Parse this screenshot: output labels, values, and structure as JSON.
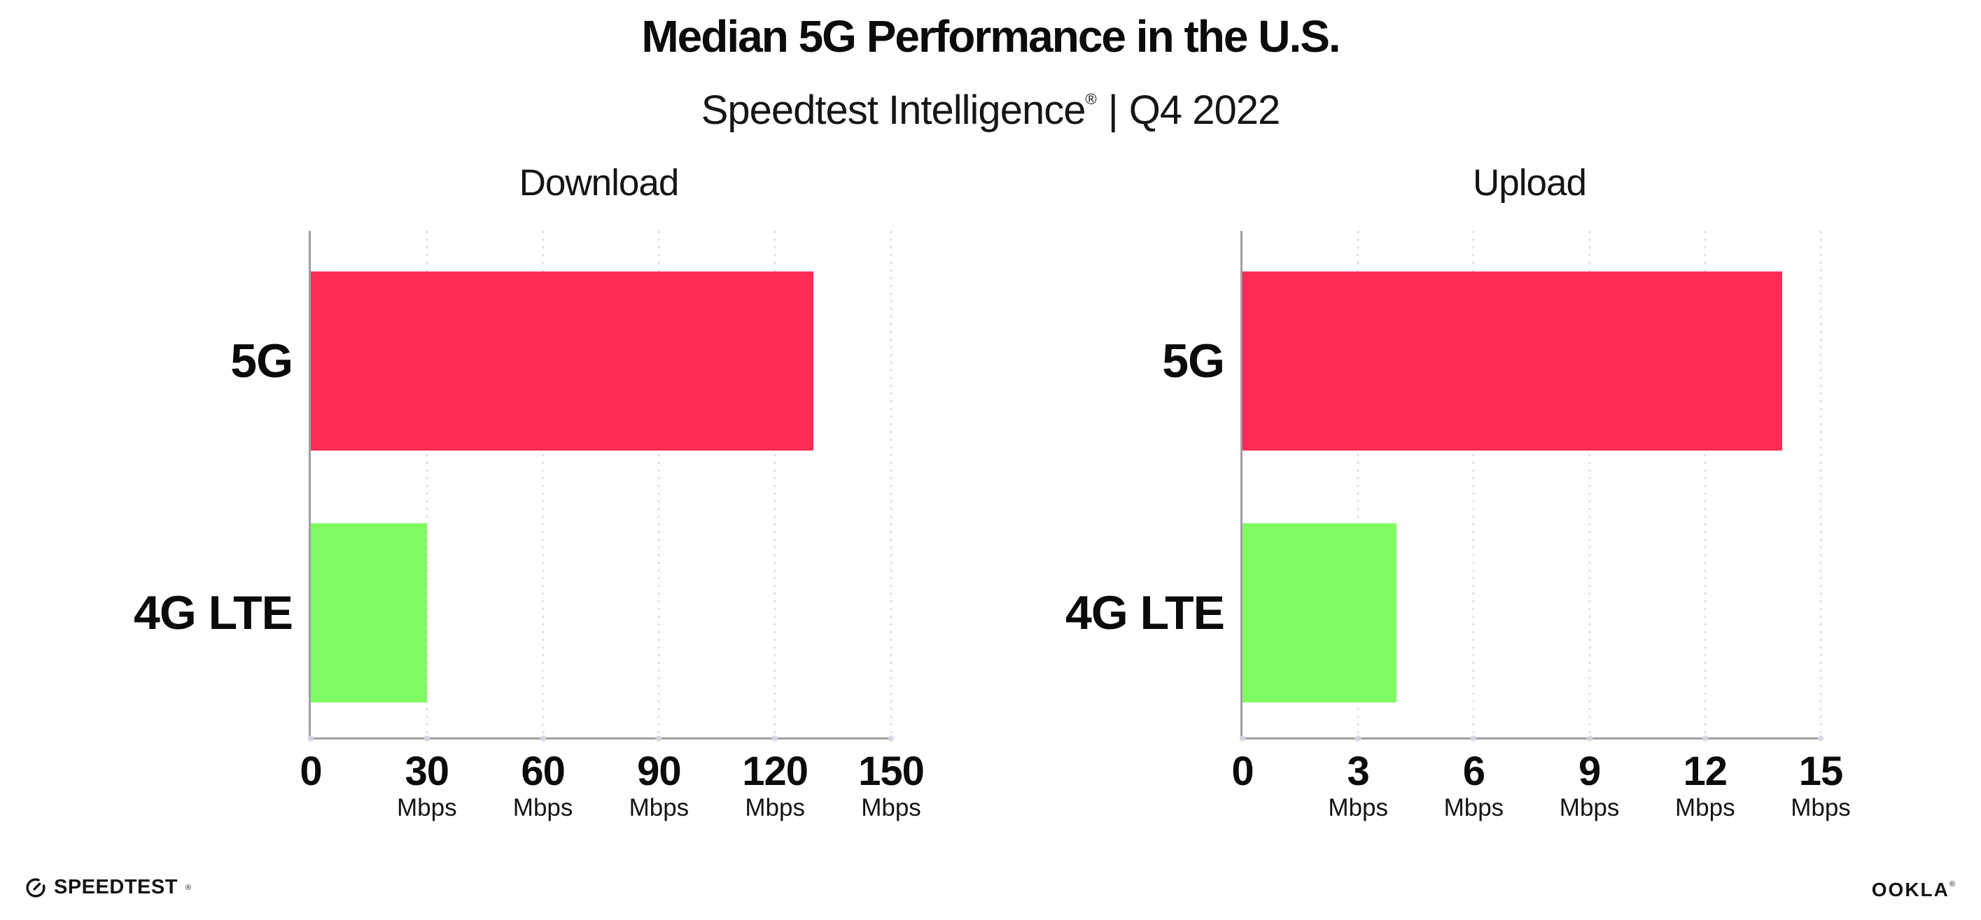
{
  "header": {
    "title": "Median 5G Performance in the U.S.",
    "subtitle_brand": "Speedtest Intelligence",
    "subtitle_reg": "®",
    "subtitle_separator": "|",
    "subtitle_period": "Q4 2022"
  },
  "chart_data": [
    {
      "type": "bar",
      "orientation": "horizontal",
      "title": "Download",
      "categories": [
        "5G",
        "4G LTE"
      ],
      "values": [
        130,
        30
      ],
      "unit": "Mbps",
      "xlim": [
        0,
        150
      ],
      "xticks": [
        0,
        30,
        60,
        90,
        120,
        150
      ],
      "grid": "vertical-dotted",
      "legend": "none",
      "bar_colors": [
        "#ff2d55",
        "#80fb61"
      ]
    },
    {
      "type": "bar",
      "orientation": "horizontal",
      "title": "Upload",
      "categories": [
        "5G",
        "4G LTE"
      ],
      "values": [
        14,
        4
      ],
      "unit": "Mbps",
      "xlim": [
        0,
        15
      ],
      "xticks": [
        0,
        3,
        6,
        9,
        12,
        15
      ],
      "grid": "vertical-dotted",
      "legend": "none",
      "bar_colors": [
        "#ff2d55",
        "#80fb61"
      ]
    }
  ],
  "footer": {
    "speedtest_logo_text": "SPEEDTEST",
    "speedtest_reg": "®",
    "ookla_logo_text": "OOKLA",
    "ookla_reg": "®"
  },
  "colors": {
    "bar_5g": "#ff2d55",
    "bar_4g_lte": "#80fb61",
    "axis": "#9e9ea4",
    "gridline": "#dfdfe9",
    "text": "#0b0b0b"
  }
}
